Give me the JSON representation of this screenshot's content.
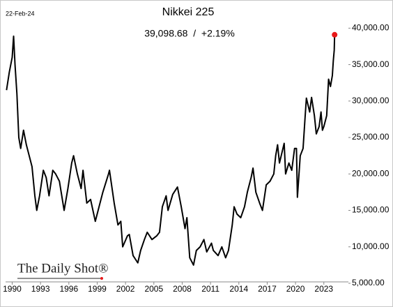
{
  "chart_data": {
    "type": "line",
    "title": "Nikkei 225",
    "date": "22-Feb-24",
    "annotation": "39,098.68  /  +2.19%",
    "source": "The Daily Shot®",
    "xlim": [
      1989.3,
      2025.6
    ],
    "xticks": [
      1990,
      1993,
      1996,
      1999,
      2002,
      2005,
      2008,
      2011,
      2014,
      2017,
      2020,
      2023
    ],
    "ylim": [
      5000,
      40800
    ],
    "yticks": [
      {
        "value": 5000,
        "label": "5,000.00"
      },
      {
        "value": 10000,
        "label": "10,000.00"
      },
      {
        "value": 15000,
        "label": "15,000.00"
      },
      {
        "value": 20000,
        "label": "20,000.00"
      },
      {
        "value": 25000,
        "label": "25,000.00"
      },
      {
        "value": 30000,
        "label": "30,000.00"
      },
      {
        "value": 35000,
        "label": "35,000.00"
      },
      {
        "value": 40000,
        "label": "40,000.00"
      }
    ],
    "color": "#000000",
    "end_marker_color": "#e8191a",
    "x": [
      1989.4,
      1989.7,
      1990.0,
      1990.15,
      1990.3,
      1990.5,
      1990.7,
      1990.9,
      1991.2,
      1991.5,
      1991.8,
      1992.1,
      1992.4,
      1992.6,
      1992.9,
      1993.3,
      1993.6,
      1993.9,
      1994.3,
      1994.6,
      1995.0,
      1995.5,
      1995.9,
      1996.3,
      1996.5,
      1996.9,
      1997.3,
      1997.5,
      1997.9,
      1998.3,
      1998.8,
      1999.2,
      1999.6,
      2000.2,
      2000.3,
      2000.8,
      2001.2,
      2001.5,
      2001.7,
      2002.2,
      2002.4,
      2002.8,
      2003.3,
      2003.6,
      2004.0,
      2004.3,
      2004.8,
      2005.3,
      2005.6,
      2005.9,
      2006.3,
      2006.5,
      2007.0,
      2007.5,
      2007.9,
      2008.3,
      2008.5,
      2008.8,
      2009.2,
      2009.5,
      2009.9,
      2010.3,
      2010.6,
      2011.1,
      2011.3,
      2011.8,
      2012.2,
      2012.6,
      2012.9,
      2013.3,
      2013.5,
      2013.8,
      2014.2,
      2014.6,
      2014.9,
      2015.3,
      2015.5,
      2015.8,
      2016.2,
      2016.5,
      2016.9,
      2017.3,
      2017.7,
      2017.9,
      2018.1,
      2018.3,
      2018.8,
      2018.95,
      2019.3,
      2019.6,
      2019.9,
      2020.1,
      2020.2,
      2020.5,
      2020.8,
      2021.0,
      2021.15,
      2021.5,
      2021.7,
      2022.0,
      2022.2,
      2022.5,
      2022.7,
      2022.85,
      2023.0,
      2023.3,
      2023.5,
      2023.7,
      2023.9,
      2024.0,
      2024.1,
      2024.14
    ],
    "values": [
      31500,
      34000,
      36000,
      38900,
      35000,
      31000,
      25000,
      23500,
      26000,
      24000,
      22500,
      21000,
      17000,
      15000,
      17000,
      20500,
      19500,
      17000,
      20500,
      20000,
      19000,
      15000,
      18000,
      21500,
      22500,
      20000,
      18000,
      20500,
      16000,
      16500,
      13500,
      15500,
      17500,
      20000,
      20500,
      16000,
      13000,
      13500,
      10000,
      11500,
      11700,
      8800,
      7800,
      9500,
      11000,
      12000,
      11000,
      11500,
      12000,
      15500,
      17000,
      15000,
      17200,
      18200,
      15500,
      12500,
      14000,
      8500,
      7500,
      9500,
      10000,
      11000,
      9300,
      10500,
      9500,
      8800,
      10000,
      8500,
      9500,
      13000,
      15500,
      14500,
      14000,
      15500,
      17500,
      19500,
      20800,
      17500,
      16000,
      15000,
      18500,
      19000,
      20000,
      22500,
      24000,
      21500,
      24200,
      20000,
      21500,
      20500,
      23500,
      23500,
      16800,
      22500,
      23500,
      27500,
      30400,
      28500,
      30500,
      28000,
      25500,
      26500,
      28500,
      26000,
      26500,
      28000,
      33000,
      32000,
      33500,
      35500,
      37000,
      39098.68
    ]
  }
}
